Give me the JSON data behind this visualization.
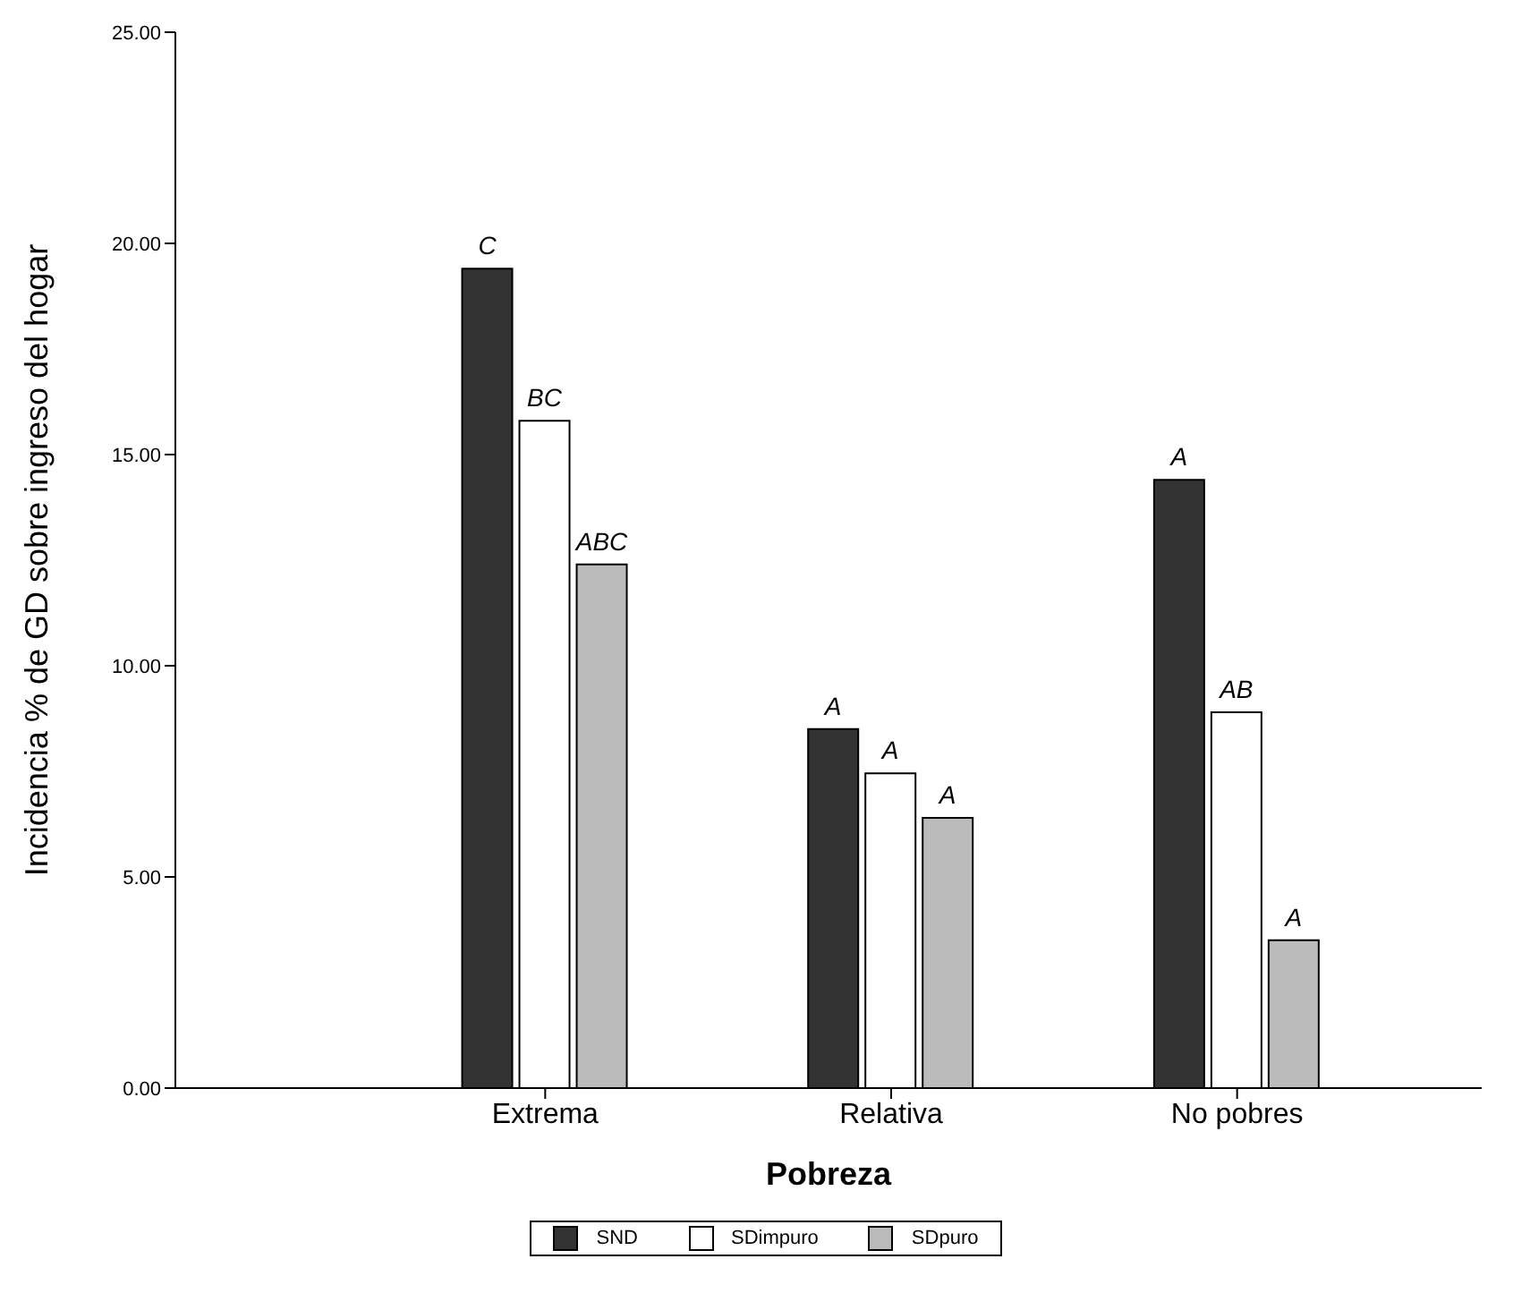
{
  "chart_data": {
    "type": "bar",
    "xlabel": "Pobreza",
    "ylabel": "Incidencia % de GD sobre ingreso del hogar",
    "categories": [
      "Extrema",
      "Relativa",
      "No pobres"
    ],
    "series": [
      {
        "name": "SND",
        "color": "#333333",
        "values": [
          19.4,
          8.5,
          14.4
        ],
        "value_labels": [
          "C",
          "A",
          "A"
        ]
      },
      {
        "name": "SDimpuro",
        "color": "#ffffff",
        "values": [
          15.8,
          7.45,
          8.9
        ],
        "value_labels": [
          "BC",
          "A",
          "AB"
        ]
      },
      {
        "name": "SDpuro",
        "color": "#bbbbbb",
        "values": [
          12.4,
          6.4,
          3.5
        ],
        "value_labels": [
          "ABC",
          "A",
          "A"
        ]
      }
    ],
    "ylim": [
      0,
      25
    ],
    "yticks": [
      {
        "value": 0,
        "label": "0.00"
      },
      {
        "value": 5,
        "label": "5.00"
      },
      {
        "value": 10,
        "label": "10.00"
      },
      {
        "value": 15,
        "label": "15.00"
      },
      {
        "value": 20,
        "label": "20.00"
      },
      {
        "value": 25,
        "label": "25.00"
      }
    ],
    "grid": false,
    "legend": "bottom"
  }
}
